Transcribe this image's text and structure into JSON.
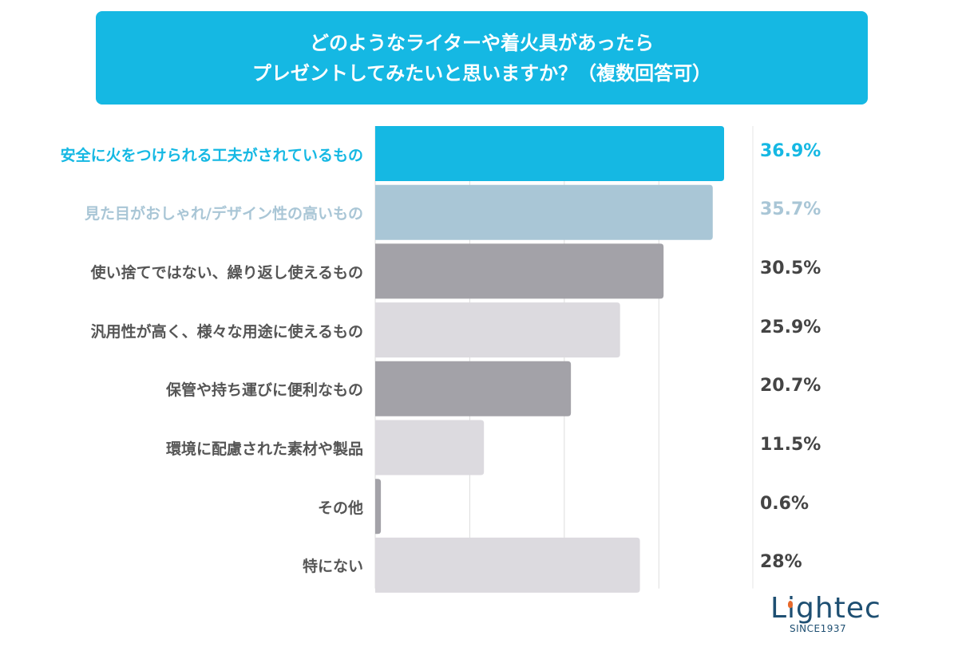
{
  "title": {
    "line1": "どのようなライターや着火具があったら",
    "line2": "プレゼントしてみたいと思いますか？（複数回答可）",
    "background": "#15b8e3"
  },
  "chart_data": {
    "type": "bar",
    "orientation": "horizontal",
    "categories": [
      "安全に火をつけられる工夫がされているもの",
      "見た目がおしゃれ/デザイン性の高いもの",
      "使い捨てではない、繰り返し使えるもの",
      "汎用性が高く、様々な用途に使えるもの",
      "保管や持ち運びに便利なもの",
      "環境に配慮された素材や製品",
      "その他",
      "特にない"
    ],
    "values": [
      36.9,
      35.7,
      30.5,
      25.9,
      20.7,
      11.5,
      0.6,
      28
    ],
    "value_labels": [
      "36.9%",
      "35.7%",
      "30.5%",
      "25.9%",
      "20.7%",
      "11.5%",
      "0.6%",
      "28%"
    ],
    "bar_colors": [
      "#15b8e3",
      "#a9c6d6",
      "#a3a2a8",
      "#dcdadf",
      "#a3a2a8",
      "#dcdadf",
      "#a3a2a8",
      "#dcdadf"
    ],
    "label_colors": [
      "#15b8e3",
      "#a9c6d6",
      "#555555",
      "#555555",
      "#555555",
      "#555555",
      "#555555",
      "#555555"
    ],
    "xlim": [
      0,
      40
    ],
    "grid": "vertical every 10",
    "unit": "%"
  },
  "logo": {
    "name": "Lightec",
    "tagline": "SINCE1937"
  }
}
